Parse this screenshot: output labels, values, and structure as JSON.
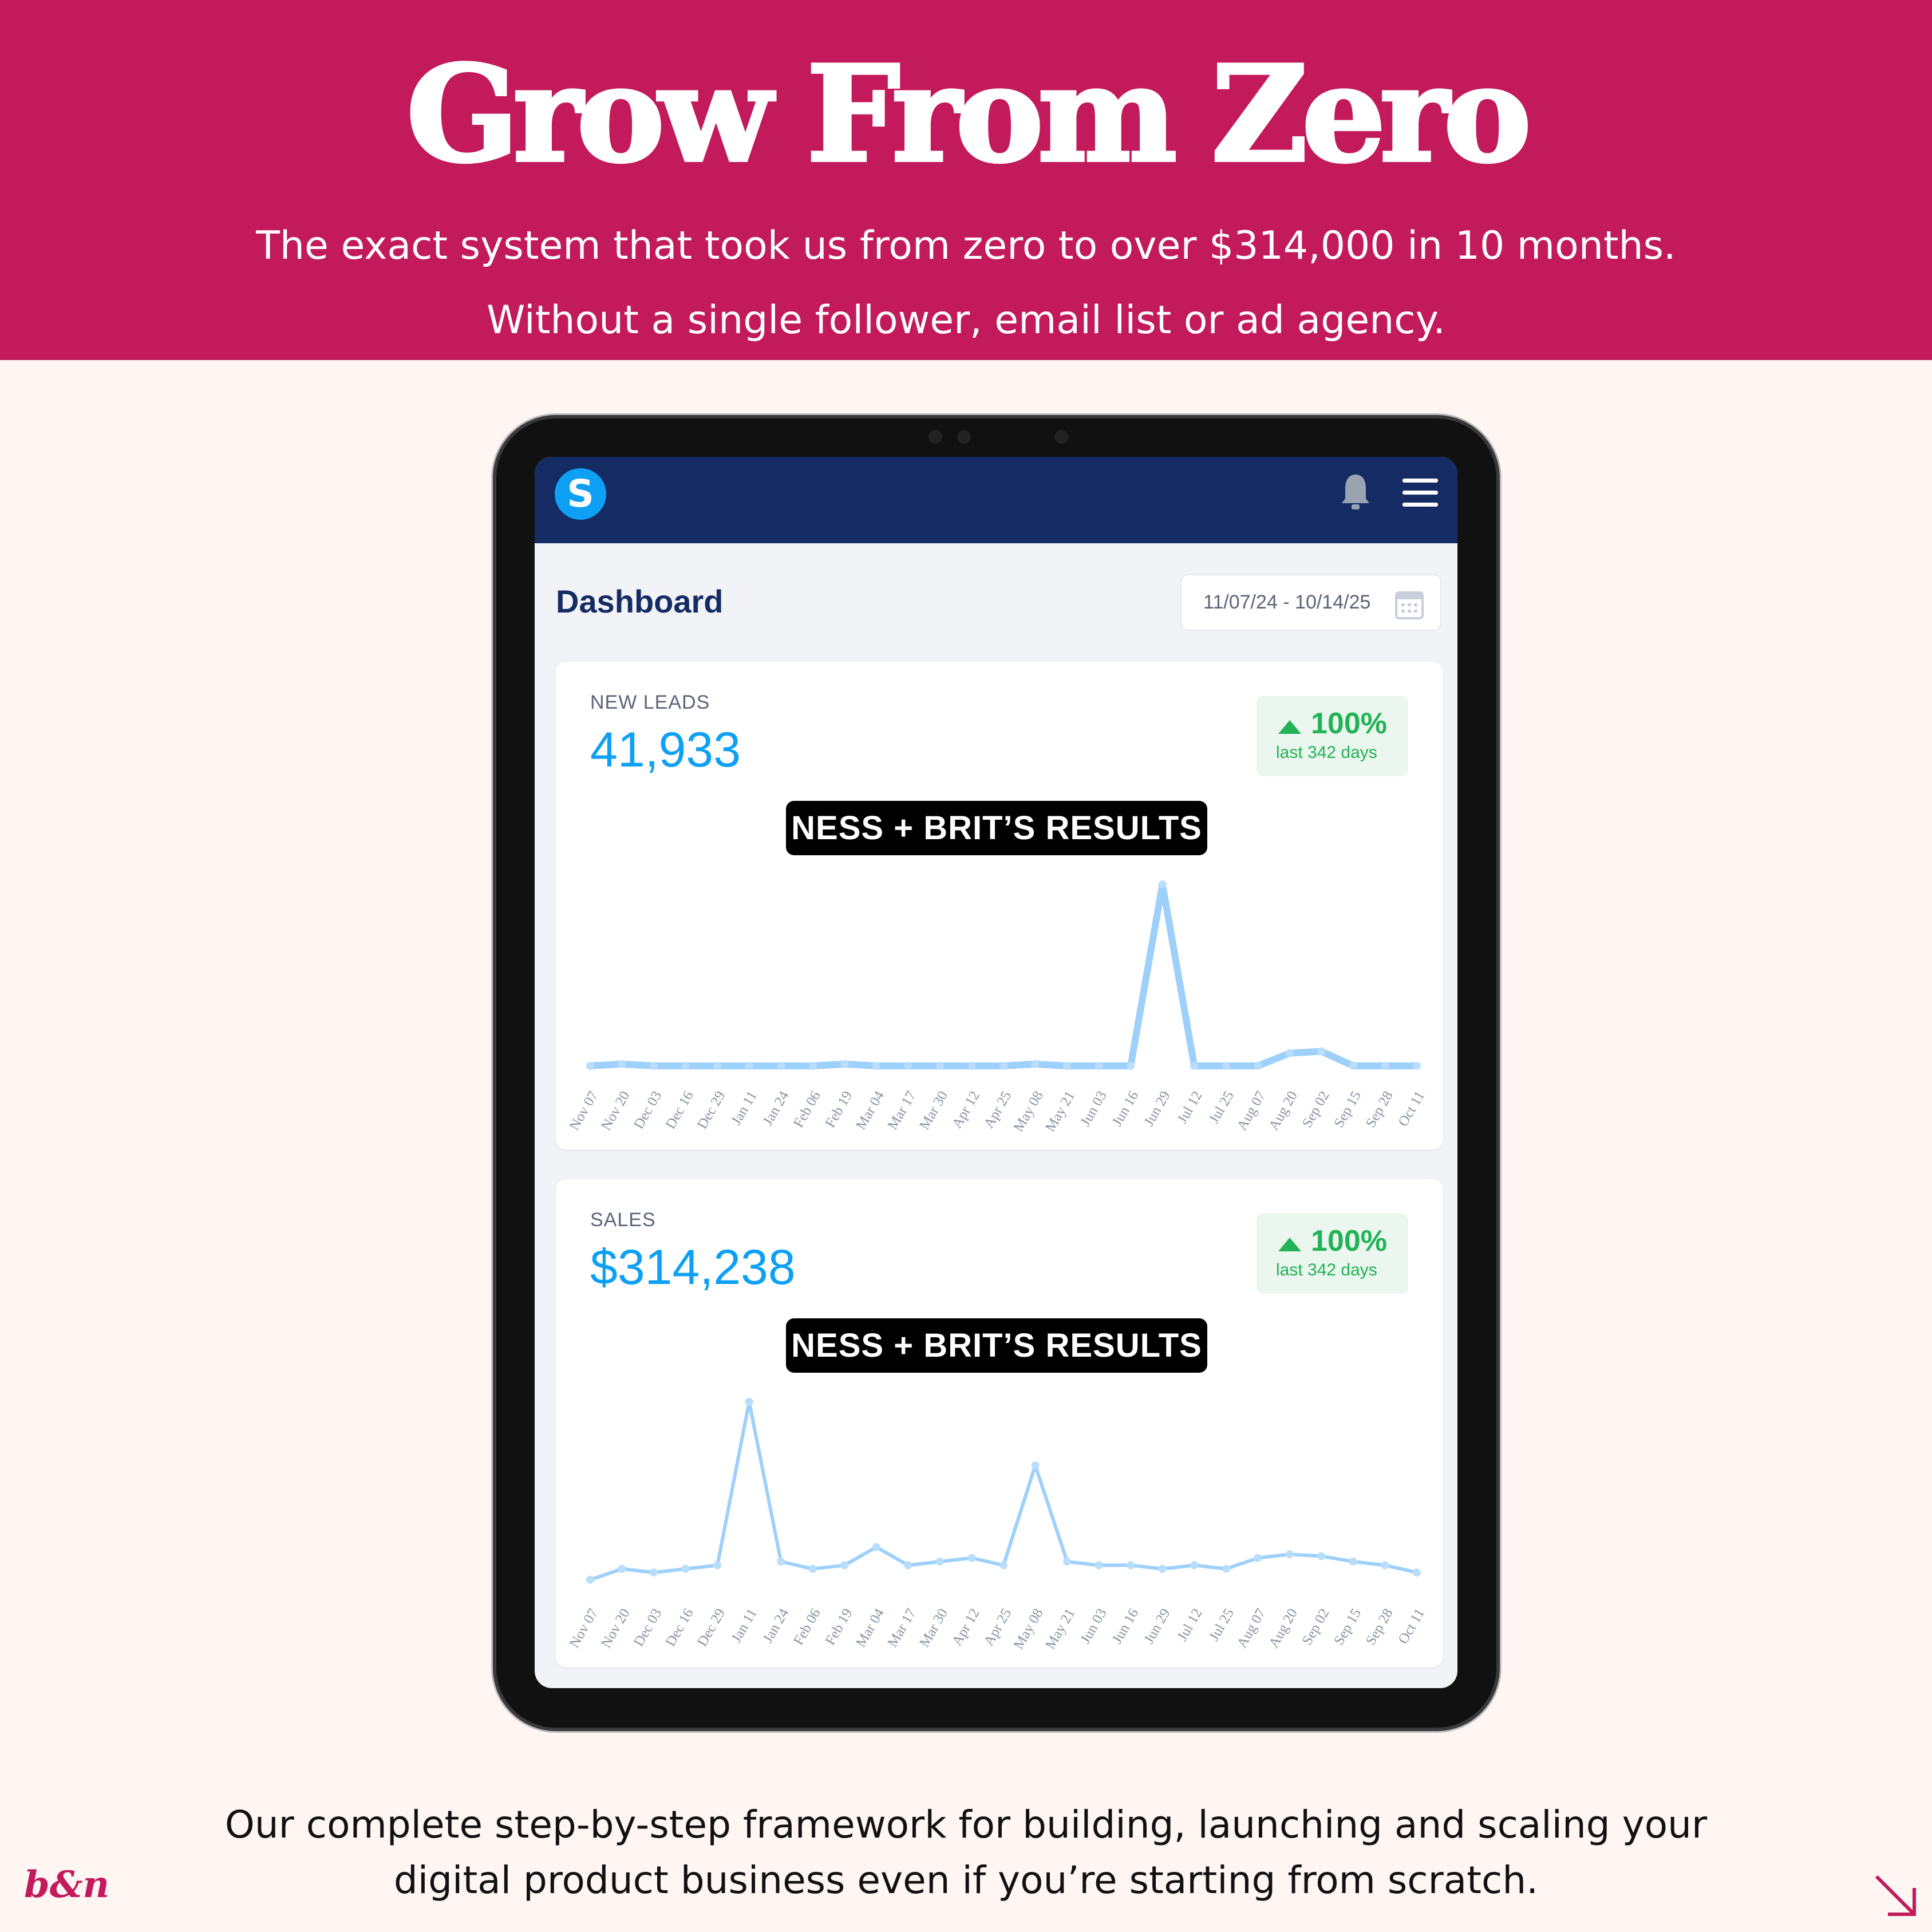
{
  "header": {
    "title": "Grow From Zero",
    "subtitle_1": "The exact system that took us from zero to over $314,000 in 10 months.",
    "subtitle_2": "Without a single follower, email list or ad agency."
  },
  "app": {
    "logo_letter": "S",
    "page_title": "Dashboard",
    "date_range": "11/07/24 - 10/14/25",
    "icons": [
      "bell-icon",
      "hamburger-menu-icon",
      "calendar-icon"
    ]
  },
  "cards": [
    {
      "label": "NEW LEADS",
      "value": "41,933",
      "change": "100%",
      "period": "last 342 days",
      "overlay": "NESS + BRIT’S RESULTS"
    },
    {
      "label": "SALES",
      "value": "$314,238",
      "change": "100%",
      "period": "last 342 days",
      "overlay": "NESS + BRIT’S RESULTS"
    }
  ],
  "colors": {
    "brand": "#C21A5A",
    "nav": "#152B63",
    "accent": "#0EA0F5",
    "positive": "#22B356",
    "line": "#7CC0FA"
  },
  "chart_data": [
    {
      "type": "line",
      "title": "NEW LEADS",
      "x": [
        "Nov 07",
        "Nov 20",
        "Dec 03",
        "Dec 16",
        "Dec 29",
        "Jan 11",
        "Jan 24",
        "Feb 06",
        "Feb 19",
        "Mar 04",
        "Mar 17",
        "Mar 30",
        "Apr 12",
        "Apr 25",
        "May 08",
        "May 21",
        "Jun 03",
        "Jun 16",
        "Jun 29",
        "Jul 12",
        "Jul 25",
        "Aug 07",
        "Aug 20",
        "Sep 02",
        "Sep 15",
        "Sep 28",
        "Oct 11"
      ],
      "values": [
        0,
        1,
        0,
        0,
        0,
        0,
        0,
        0,
        1,
        0,
        0,
        0,
        0,
        0,
        1,
        0,
        0,
        0,
        100,
        0,
        0,
        0,
        7,
        8,
        0,
        0,
        0
      ],
      "grid": false
    },
    {
      "type": "line",
      "title": "SALES",
      "x": [
        "Nov 07",
        "Nov 20",
        "Dec 03",
        "Dec 16",
        "Dec 29",
        "Jan 11",
        "Jan 24",
        "Feb 06",
        "Feb 19",
        "Mar 04",
        "Mar 17",
        "Mar 30",
        "Apr 12",
        "Apr 25",
        "May 08",
        "May 21",
        "Jun 03",
        "Jun 16",
        "Jun 29",
        "Jul 12",
        "Jul 25",
        "Aug 07",
        "Aug 20",
        "Sep 02",
        "Sep 15",
        "Sep 28",
        "Oct 11"
      ],
      "values": [
        2,
        8,
        6,
        8,
        10,
        100,
        12,
        8,
        10,
        20,
        10,
        12,
        14,
        10,
        65,
        12,
        10,
        10,
        8,
        10,
        8,
        14,
        16,
        15,
        12,
        10,
        6
      ],
      "grid": false
    }
  ],
  "footer": {
    "line_1": "Our complete step-by-step framework for building, launching and scaling your",
    "line_2": "digital product business even if you’re starting from scratch.",
    "brand_mark": "b&n"
  }
}
